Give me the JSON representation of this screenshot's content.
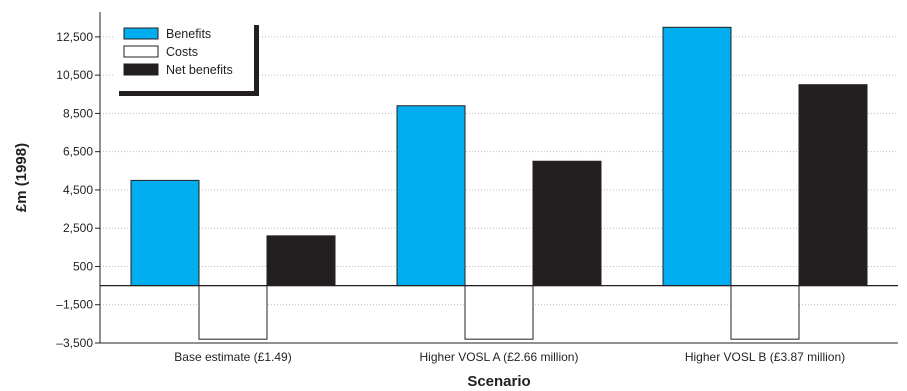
{
  "chart_data": {
    "type": "bar",
    "title": "",
    "xlabel": "Scenario",
    "ylabel": "£m (1998)",
    "categories": [
      "Base estimate (£1.49)",
      "Higher VOSL A (£2.66 million)",
      "Higher VOSL B (£3.87 million)"
    ],
    "yticks": [
      -3500,
      -1500,
      500,
      2500,
      4500,
      6500,
      8500,
      10500,
      12500
    ],
    "ytick_labels": [
      "–3,500",
      "–1,500",
      "500",
      "2,500",
      "4,500",
      "6,500",
      "8,500",
      "10,500",
      "12,500"
    ],
    "ylim": [
      -3500,
      13800
    ],
    "baseline": -500,
    "grid": true,
    "legend_position": "top-left",
    "series": [
      {
        "name": "Benefits",
        "color": "#00aeef",
        "values": [
          5000,
          8900,
          13000
        ]
      },
      {
        "name": "Costs",
        "color": "#ffffff",
        "values": [
          -3300,
          -3300,
          -3300
        ]
      },
      {
        "name": "Net benefits",
        "color": "#231f20",
        "values": [
          2100,
          6000,
          10000
        ]
      }
    ]
  }
}
